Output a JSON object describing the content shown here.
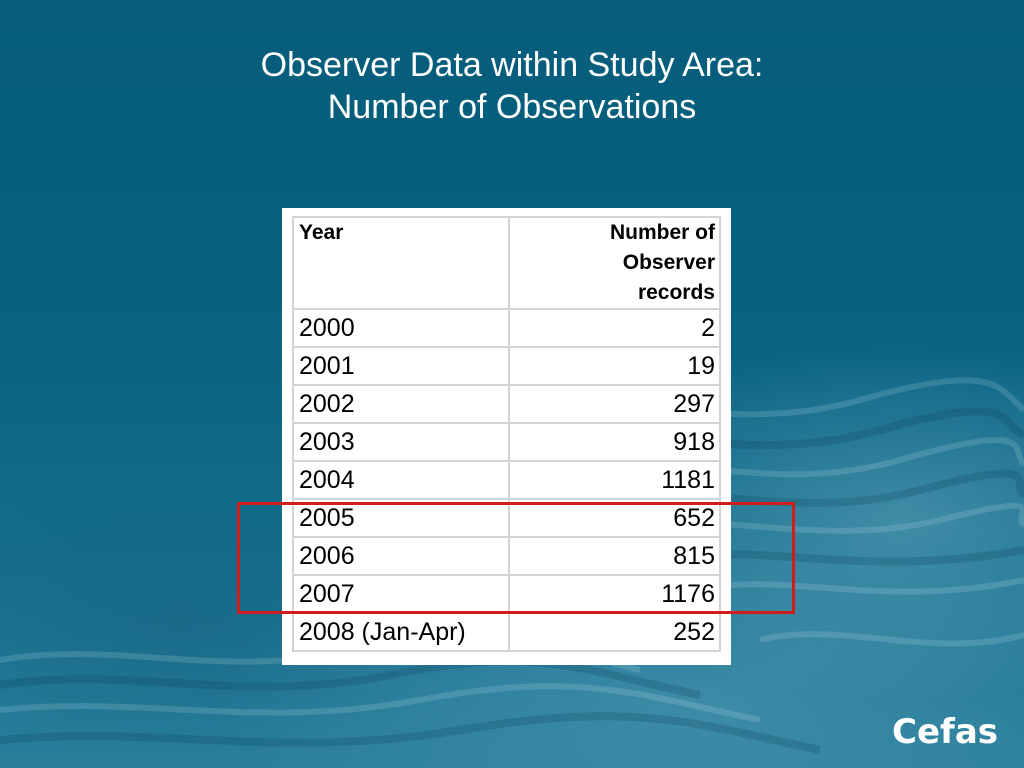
{
  "slide": {
    "title_line1": "Observer Data within Study Area:",
    "title_line2": "Number of Observations"
  },
  "table": {
    "headers": {
      "year": "Year",
      "count_line1": "Number of",
      "count_line2": "Observer",
      "count_line3": "records"
    },
    "rows": [
      {
        "year": "2000",
        "count": "2"
      },
      {
        "year": "2001",
        "count": "19"
      },
      {
        "year": "2002",
        "count": "297"
      },
      {
        "year": "2003",
        "count": "918"
      },
      {
        "year": "2004",
        "count": "1181"
      },
      {
        "year": "2005",
        "count": "652"
      },
      {
        "year": "2006",
        "count": "815"
      },
      {
        "year": "2007",
        "count": "1176"
      },
      {
        "year": "2008 (Jan-Apr)",
        "count": "252"
      }
    ]
  },
  "highlight": {
    "color": "#d01c1c"
  },
  "logo": {
    "text": "Cefas"
  }
}
